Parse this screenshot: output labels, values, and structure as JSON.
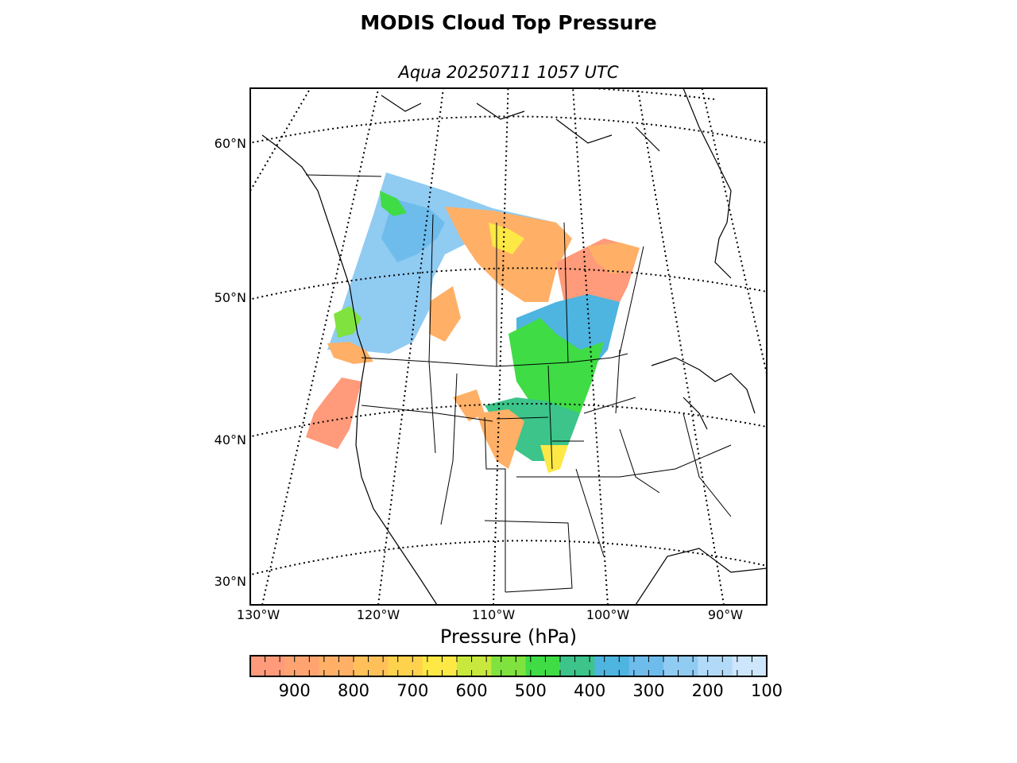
{
  "title": "MODIS Cloud Top Pressure",
  "subtitle": "Aqua 20250711 1057 UTC",
  "latitude_labels": [
    "60°N",
    "50°N",
    "40°N",
    "30°N"
  ],
  "longitude_labels": [
    "130°W",
    "120°W",
    "110°W",
    "100°W",
    "90°W"
  ],
  "colorbar": {
    "label": "Pressure (hPa)",
    "ticks": [
      "900",
      "800",
      "700",
      "600",
      "500",
      "400",
      "300",
      "200",
      "100"
    ],
    "range_hpa": [
      975,
      100
    ],
    "colors": [
      "#ff9a7a",
      "#ffa470",
      "#ffb066",
      "#ffc05a",
      "#ffd24e",
      "#fde845",
      "#c9e83e",
      "#7fe23e",
      "#3fdc45",
      "#3cc48a",
      "#4eb4e0",
      "#6ebcec",
      "#90cbf2",
      "#b2daf8",
      "#cde6fc"
    ]
  },
  "legend_classes": {
    "low_cloud_900hPa": "#ff9a7a",
    "mid_low_800hPa": "#ffb066",
    "mid_700hPa": "#fde845",
    "mid_500hPa": "#3fdc45",
    "high_400hPa": "#4eb4e0",
    "high_300hPa": "#90cbf2"
  }
}
